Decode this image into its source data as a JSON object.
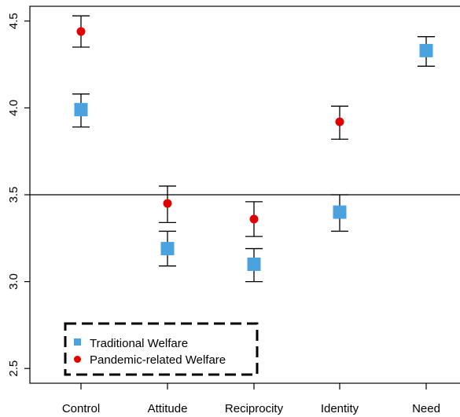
{
  "chart_data": {
    "type": "scatter",
    "categories": [
      "Control",
      "Attitude",
      "Reciprocity",
      "Identity",
      "Need"
    ],
    "ylim": [
      2.45,
      4.6
    ],
    "yticks": [
      "2.5",
      "3.0",
      "3.5",
      "4.0",
      "4.5"
    ],
    "reference_line": 3.5,
    "legend_position": "bottom-left",
    "series": [
      {
        "name": "Traditional Welfare",
        "marker": "square",
        "color": "#4aa3df",
        "values": [
          3.99,
          3.19,
          3.1,
          3.4,
          4.33
        ],
        "err_low": [
          3.89,
          3.09,
          3.0,
          3.29,
          4.24
        ],
        "err_high": [
          4.08,
          3.29,
          3.19,
          3.5,
          4.41
        ]
      },
      {
        "name": "Pandemic-related Welfare",
        "marker": "circle",
        "color": "#e00000",
        "values": [
          4.44,
          3.45,
          3.36,
          3.92,
          null
        ],
        "err_low": [
          4.35,
          3.34,
          3.26,
          3.82,
          null
        ],
        "err_high": [
          4.53,
          3.55,
          3.46,
          4.01,
          null
        ]
      }
    ]
  }
}
